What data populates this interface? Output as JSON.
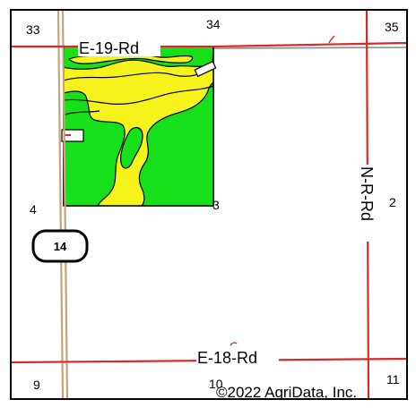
{
  "colors": {
    "road": "#d42a2a",
    "highway": "#c9a27a",
    "soil_green": "#16e01a",
    "soil_yellow": "#f6f21c",
    "outline": "#000000",
    "background": "#ffffff"
  },
  "sections": {
    "s33": "33",
    "s34": "34",
    "s35": "35",
    "s4": "4",
    "s3": "3",
    "s2": "2",
    "s9": "9",
    "s10": "10",
    "s11": "11"
  },
  "roads": {
    "e19": "E-19-Rd",
    "e18": "E-18-Rd",
    "nr": "N-R-Rd"
  },
  "shield": {
    "label": "14"
  },
  "copyright": "©2022 AgriData, Inc."
}
